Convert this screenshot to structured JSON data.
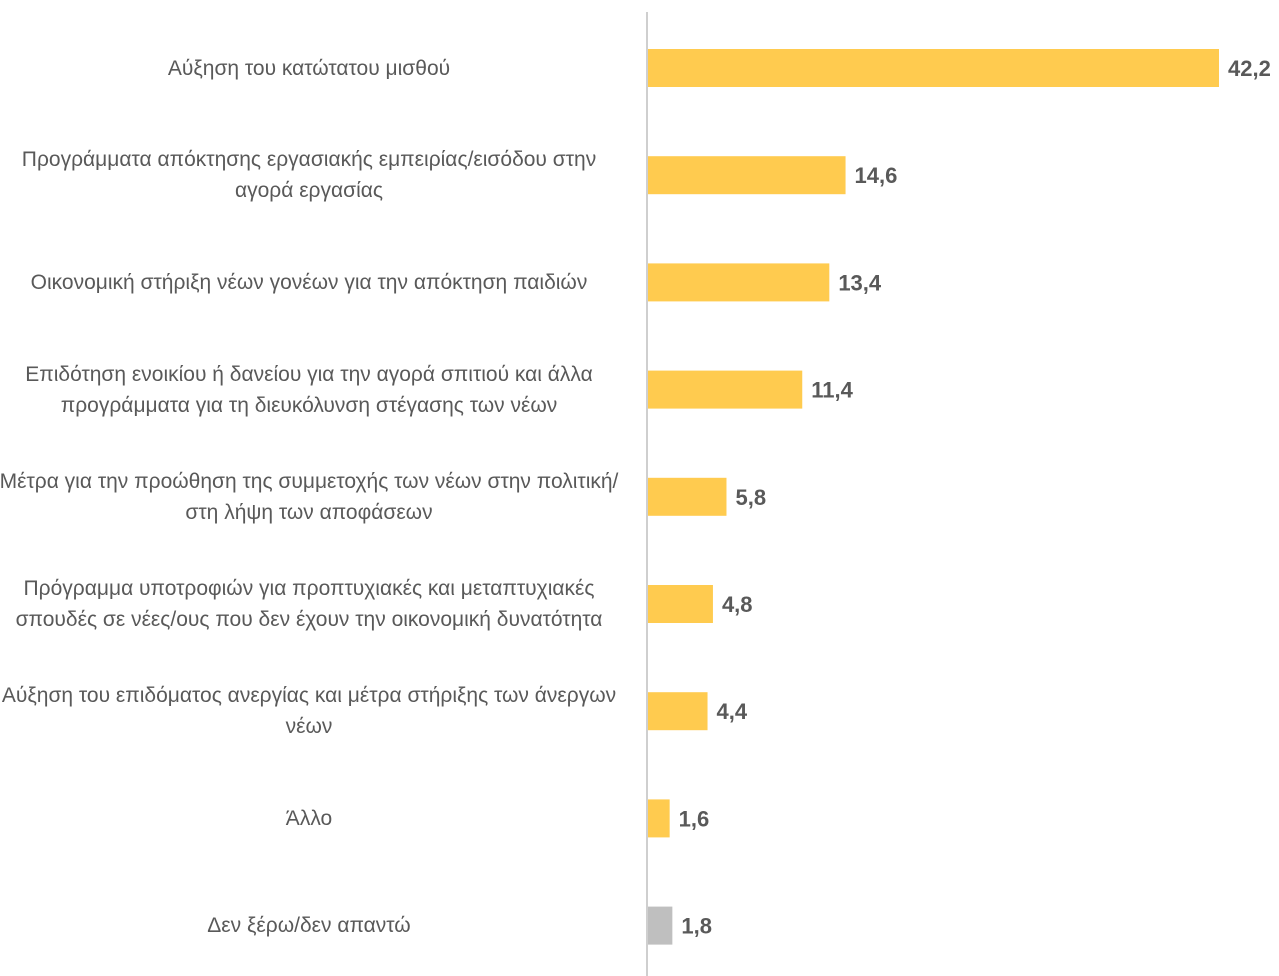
{
  "chart_data": {
    "type": "bar",
    "orientation": "horizontal",
    "categories": [
      "Αύξηση του κατώτατου μισθού",
      "Προγράμματα απόκτησης εργασιακής εμπειρίας/εισόδου στην αγορά εργασίας",
      "Οικονομική στήριξη νέων γονέων για την απόκτηση παιδιών",
      "Επιδότηση ενοικίου ή δανείου για την αγορά σπιτιού και άλλα προγράμματα για τη διευκόλυνση στέγασης των νέων",
      "Μέτρα για την προώθηση της συμμετοχής των νέων στην πολιτική/στη λήψη των αποφάσεων",
      "Πρόγραμμα υποτροφιών για προπτυχιακές και μεταπτυχιακές σπουδές σε νέες/ους που δεν έχουν την οικονομική δυνατότητα",
      "Αύξηση του επιδόματος ανεργίας και μέτρα στήριξης των άνεργων νέων",
      "Άλλο",
      "Δεν ξέρω/δεν απαντώ"
    ],
    "values": [
      42.2,
      14.6,
      13.4,
      11.4,
      5.8,
      4.8,
      4.4,
      1.6,
      1.8
    ],
    "value_labels": [
      "42,2",
      "14,6",
      "13,4",
      "11,4",
      "5,8",
      "4,8",
      "4,4",
      "1,6",
      "1,8"
    ],
    "colors": [
      "#FFCB4F",
      "#FFCB4F",
      "#FFCB4F",
      "#FFCB4F",
      "#FFCB4F",
      "#FFCB4F",
      "#FFCB4F",
      "#FFCB4F",
      "#BFBFBF"
    ],
    "axis_color": "#BFBFBF",
    "xlim": [
      0,
      42.2
    ],
    "grid": false,
    "legend": "none"
  }
}
